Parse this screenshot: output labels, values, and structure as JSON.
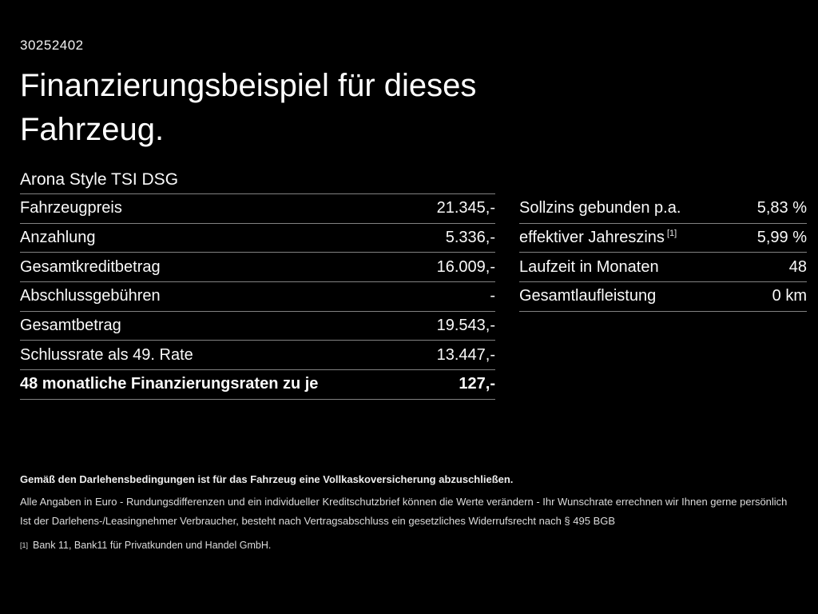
{
  "page": {
    "document_id": "30252402",
    "title": "Finanzierungsbeispiel für dieses Fahrzeug.",
    "model": "Arona Style TSI DSG"
  },
  "left_table": {
    "rows": [
      {
        "label": "Fahrzeugpreis",
        "value": "21.345,-"
      },
      {
        "label": "Anzahlung",
        "value": "5.336,-"
      },
      {
        "label": "Gesamtkreditbetrag",
        "value": "16.009,-"
      },
      {
        "label": "Abschlussgebühren",
        "value": "-"
      },
      {
        "label": "Gesamtbetrag",
        "value": "19.543,-"
      },
      {
        "label": "Schlussrate als 49. Rate",
        "value": "13.447,-"
      },
      {
        "label": "48 monatliche Finanzierungsraten zu je",
        "value": "127,-"
      }
    ]
  },
  "right_table": {
    "rows": [
      {
        "label": "Sollzins gebunden p.a.",
        "sup": "",
        "value": "5,83 %"
      },
      {
        "label": "effektiver Jahreszins",
        "sup": "[1]",
        "value": "5,99 %"
      },
      {
        "label": "Laufzeit in Monaten",
        "sup": "",
        "value": "48"
      },
      {
        "label": "Gesamtlaufleistung",
        "sup": "",
        "value": "0 km"
      }
    ]
  },
  "footer": {
    "insurance_note": "Gemäß den Darlehensbedingungen ist für das Fahrzeug eine Vollkaskoversicherung abzuschließen.",
    "disclaimer_line1": "Alle Angaben in Euro - Rundungsdifferenzen und ein individueller Kreditschutzbrief können die Werte verändern - Ihr Wunschrate errechnen wir Ihnen gerne persönlich",
    "disclaimer_line2": "Ist der Darlehens-/Leasingnehmer Verbraucher, besteht nach Vertragsabschluss ein gesetzliches Widerrufsrecht nach § 495 BGB",
    "footnote_marker": "[1]",
    "footnote_text": "Bank 11, Bank11 für Privatkunden und Handel GmbH."
  },
  "colors": {
    "background": "#000000",
    "text": "#fafafa",
    "divider": "#828282"
  }
}
